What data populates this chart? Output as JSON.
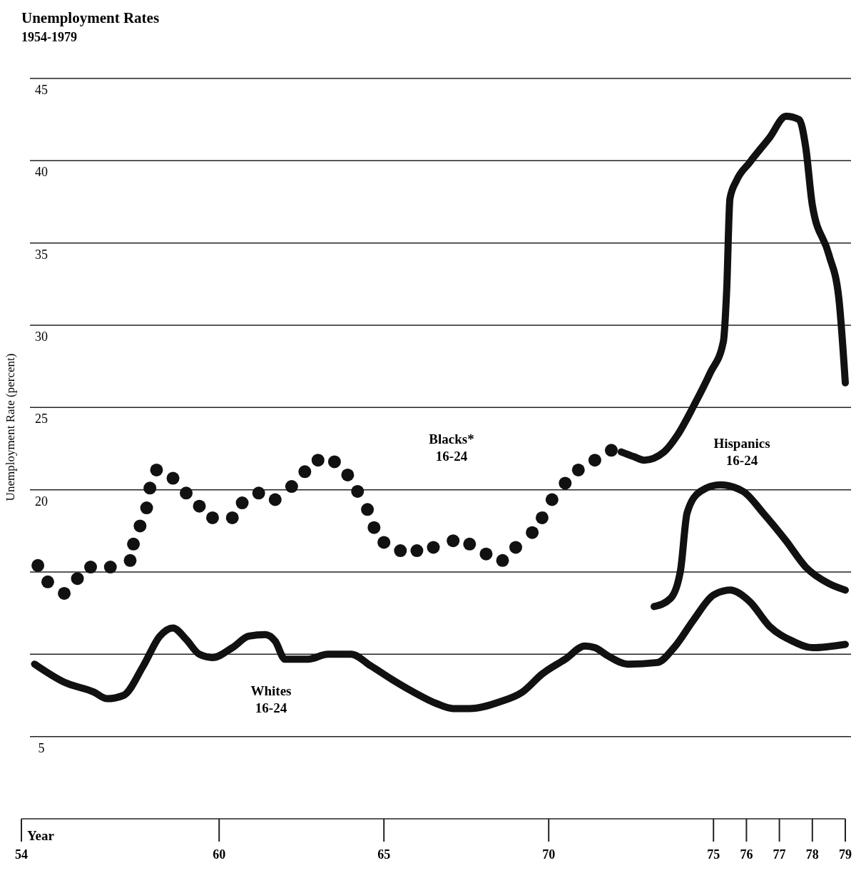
{
  "chart_data": {
    "type": "line",
    "title": "Unemployment Rates",
    "subtitle": "1954-1979",
    "xlabel": "Year",
    "ylabel": "Unemployment Rate (percent)",
    "xlim": [
      54,
      79
    ],
    "xticks": [
      54,
      60,
      65,
      70,
      75,
      76,
      77,
      78,
      79
    ],
    "ylim": [
      0,
      45
    ],
    "yticks": [
      5,
      {
        "value": 10,
        "label": null
      },
      {
        "value": 15,
        "label": null
      },
      20,
      25,
      30,
      35,
      40,
      45
    ],
    "grid": "y",
    "line_style": "solid",
    "series": [
      {
        "type": "scatter",
        "marker": "circle",
        "color": "#111111",
        "x": [
          54.5,
          54.8,
          55.3,
          55.7,
          56.1,
          56.7,
          57.3,
          57.4,
          57.6,
          57.8,
          57.9,
          58.1,
          58.6,
          59.0,
          59.4,
          59.8,
          60.4,
          60.7,
          61.2,
          61.7,
          62.2,
          62.6,
          63.0,
          63.5,
          63.9,
          64.2,
          64.5,
          64.7,
          65.0,
          65.5,
          66.0,
          66.5,
          67.1,
          67.6,
          68.1,
          68.6,
          69.0,
          69.5,
          69.8,
          70.1,
          70.5,
          70.9,
          71.4,
          71.9
        ],
        "values": [
          15.4,
          14.4,
          13.7,
          14.6,
          15.3,
          15.3,
          15.7,
          16.7,
          17.8,
          18.9,
          20.1,
          21.2,
          20.7,
          19.8,
          19.0,
          18.3,
          18.3,
          19.2,
          19.8,
          19.4,
          20.2,
          21.1,
          21.8,
          21.7,
          20.9,
          19.9,
          18.8,
          17.7,
          16.8,
          16.3,
          16.3,
          16.5,
          16.9,
          16.7,
          16.1,
          15.7,
          16.5,
          17.4,
          18.3,
          19.4,
          20.4,
          21.2,
          21.8,
          22.4
        ]
      },
      {
        "color": "#111111",
        "x": [
          72.2,
          72.6,
          72.9,
          73.5,
          73.9,
          74.4,
          74.9,
          75.3,
          75.4,
          75.5,
          75.7,
          76.1,
          76.7,
          77.2,
          77.6,
          77.8,
          78.0,
          78.5,
          78.8,
          79.0
        ],
        "values": [
          22.3,
          22.0,
          21.8,
          22.3,
          23.3,
          25.1,
          27.1,
          29.0,
          32.1,
          37.7,
          38.8,
          39.9,
          41.4,
          42.7,
          42.5,
          40.8,
          37.3,
          34.3,
          31.7,
          26.5
        ]
      },
      {
        "color": "#111111",
        "x": [
          73.2,
          73.7,
          74.0,
          74.2,
          74.6,
          75.2,
          75.9,
          76.5,
          77.2,
          77.8,
          78.5,
          79.0
        ],
        "values": [
          12.9,
          13.4,
          15.1,
          18.6,
          19.9,
          20.3,
          19.9,
          18.6,
          16.9,
          15.3,
          14.3,
          13.9
        ]
      },
      {
        "color": "#111111",
        "x": [
          54.4,
          55.3,
          56.2,
          56.6,
          57.1,
          57.7,
          58.2,
          58.6,
          59.0,
          59.4,
          59.8,
          60.4,
          60.9,
          61.4,
          61.7,
          62.0,
          62.7,
          63.3,
          64.0,
          64.6,
          65.3,
          65.9,
          66.6,
          67.1,
          67.6,
          68.5,
          69.2,
          69.8,
          70.5,
          71.1,
          71.4,
          71.8,
          72.4,
          73.3,
          73.8,
          74.4,
          75.0,
          75.5,
          76.1,
          76.7,
          77.4,
          78.0,
          79.0
        ],
        "values": [
          9.4,
          8.3,
          7.7,
          7.3,
          7.5,
          9.3,
          11.1,
          11.6,
          10.9,
          10.0,
          9.8,
          10.4,
          11.1,
          11.2,
          10.8,
          9.7,
          9.7,
          10.0,
          10.0,
          9.3,
          8.4,
          7.7,
          7.0,
          6.7,
          6.7,
          7.1,
          7.7,
          8.8,
          9.7,
          10.5,
          10.4,
          9.9,
          9.4,
          9.5,
          10.4,
          12.1,
          13.6,
          13.9,
          13.2,
          11.7,
          10.8,
          10.4,
          10.6
        ]
      }
    ],
    "annotations": [
      "Blacks*\n16-24",
      "Hispanics\n16-24",
      "Whites\n16-24"
    ]
  }
}
